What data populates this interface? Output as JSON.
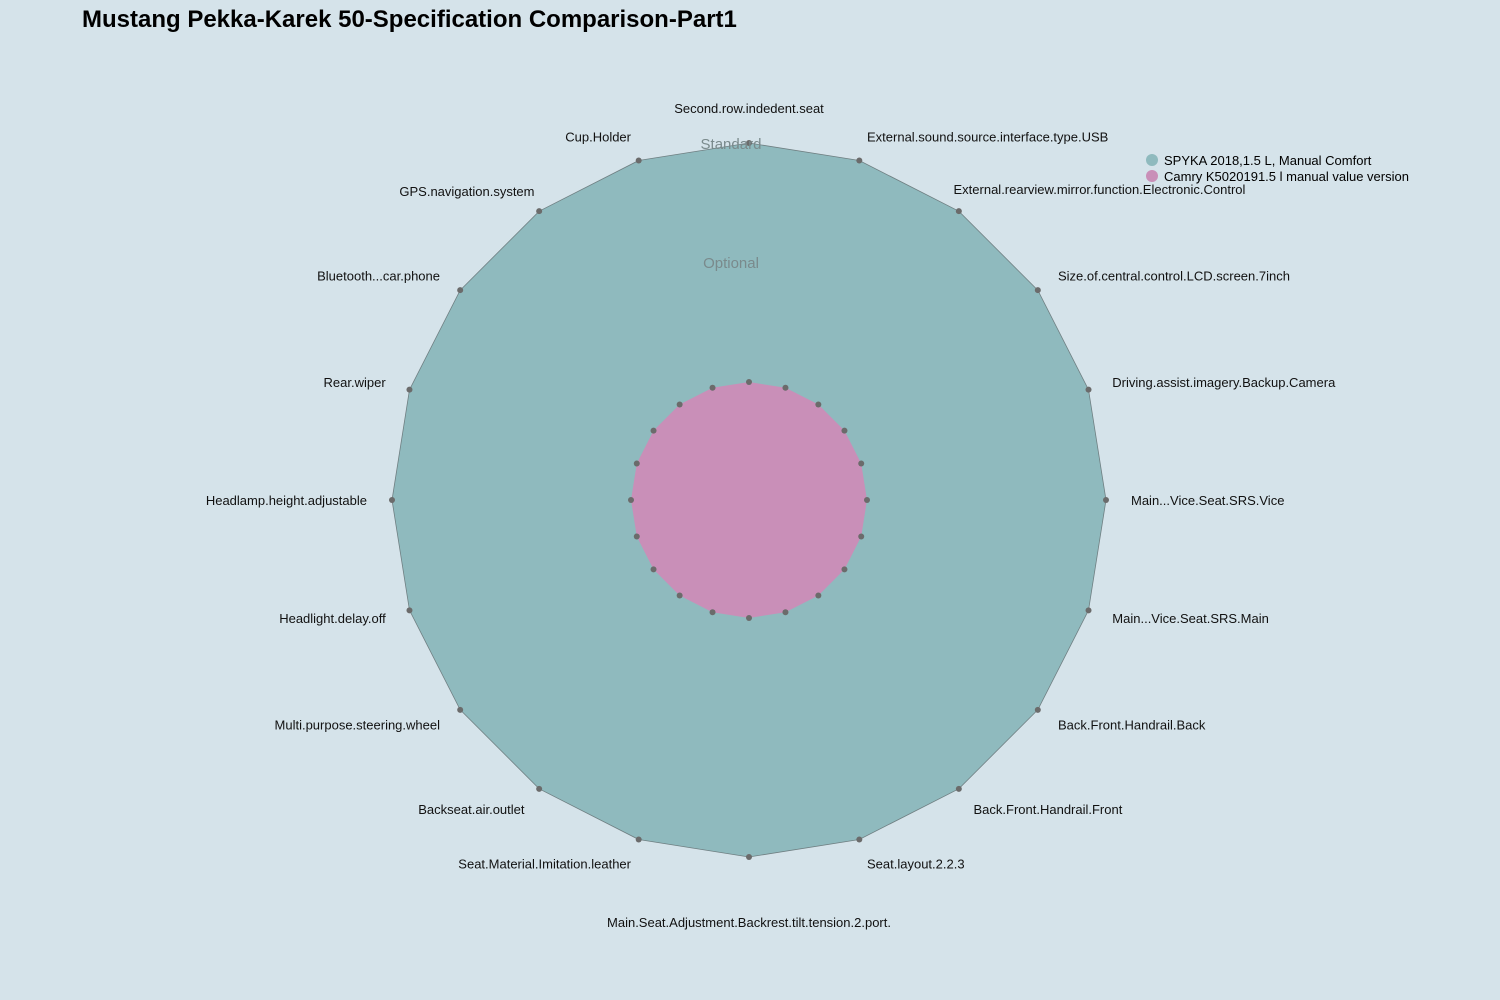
{
  "chart_data": {
    "type": "radar",
    "title": "Mustang Pekka-Karek 50-Specification Comparison-Part1",
    "levels": [
      "",
      "Optional",
      "Standard"
    ],
    "axes": [
      "Second.row.indedent.seat",
      "External.sound.source.interface.type.USB",
      "External.rearview.mirror.function.Electronic.Control",
      "Size.of.central.control.LCD.screen.7inch",
      "Driving.assist.imagery.Backup.Camera",
      "Main...Vice.Seat.SRS.Vice",
      "Main...Vice.Seat.SRS.Main",
      "Back.Front.Handrail.Back",
      "Back.Front.Handrail.Front",
      "Seat.layout.2.2.3",
      "Main.Seat.Adjustment.Backrest.tilt.tension.2.port.",
      "Seat.Material.Imitation.leather",
      "Backseat.air.outlet",
      "Multi.purpose.steering.wheel",
      "Headlight.delay.off",
      "Headlamp.height.adjustable",
      "Rear.wiper",
      "Bluetooth...car.phone",
      "GPS.navigation.system",
      "Cup.Holder"
    ],
    "series": [
      {
        "name": "SPYKA 2018,1.5 L, Manual Comfort",
        "color": "#8fbabe",
        "values": [
          "Standard",
          "Standard",
          "Standard",
          "Standard",
          "Standard",
          "Standard",
          "Standard",
          "Standard",
          "Standard",
          "Standard",
          "Standard",
          "Standard",
          "Standard",
          "Standard",
          "Standard",
          "Standard",
          "Standard",
          "Standard",
          "Standard",
          "Standard"
        ]
      },
      {
        "name": "Camry K5020191.5 l manual value version",
        "color": "#c98fb8",
        "values": [
          "",
          "",
          "",
          "",
          "",
          "",
          "",
          "",
          "",
          "",
          "",
          "",
          "",
          "",
          "",
          "",
          "",
          "",
          "",
          ""
        ]
      }
    ],
    "legend_position": "top-right"
  }
}
